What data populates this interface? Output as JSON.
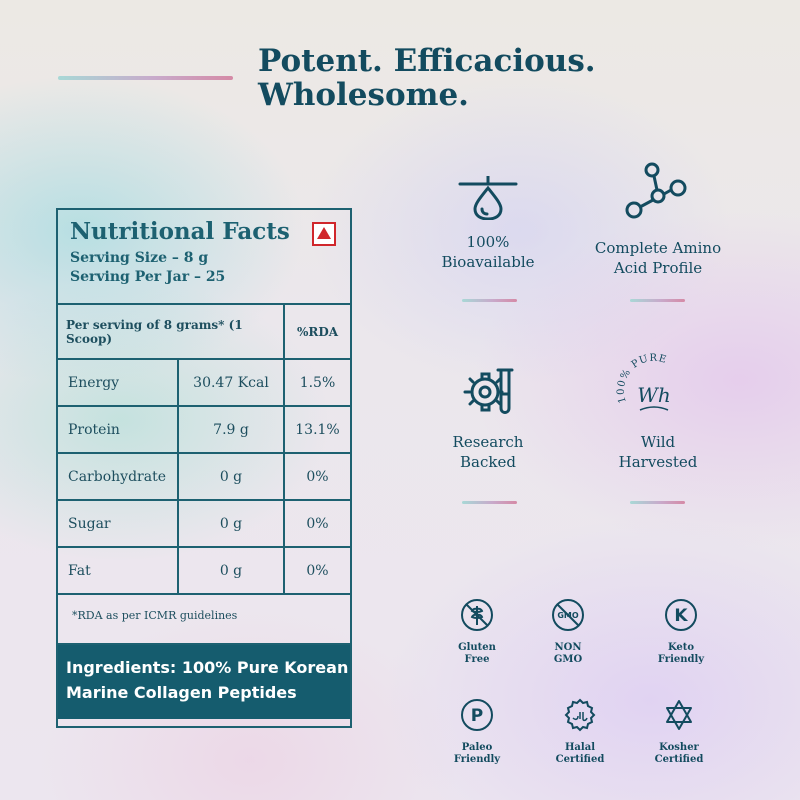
{
  "headline": {
    "line1": "Potent. Efficacious.",
    "line2": "Wholesome."
  },
  "nutrition": {
    "title": "Nutritional Facts",
    "serving_size": "Serving Size – 8 g",
    "serving_per_jar": "Serving Per Jar – 25",
    "header": {
      "per_serving": "Per serving of 8 grams* (1 Scoop)",
      "rda": "%RDA"
    },
    "rows": [
      {
        "name": "Energy",
        "amount": "30.47 Kcal",
        "rda": "1.5%"
      },
      {
        "name": "Protein",
        "amount": "7.9 g",
        "rda": "13.1%"
      },
      {
        "name": "Carbohydrate",
        "amount": "0 g",
        "rda": "0%"
      },
      {
        "name": "Sugar",
        "amount": "0 g",
        "rda": "0%"
      },
      {
        "name": "Fat",
        "amount": "0 g",
        "rda": "0%"
      }
    ],
    "rda_note": "*RDA as per ICMR guidelines",
    "ingredients_line1": "Ingredients: 100% Pure Korean",
    "ingredients_line2": "Marine Collagen Peptides",
    "diet_mark_icon": "non-vegetarian-mark-icon",
    "diet_mark_color": "#d0262b"
  },
  "features": [
    {
      "icon": "water-drop-icon",
      "line1": "100%",
      "line2": "Bioavailable"
    },
    {
      "icon": "molecule-icon",
      "line1": "Complete Amino",
      "line2": "Acid Profile"
    },
    {
      "icon": "gear-flask-icon",
      "line1": "Research",
      "line2": "Backed"
    },
    {
      "icon": "pure-wh-seal-icon",
      "line1": "Wild",
      "line2": "Harvested",
      "seal_text": "100% PURE",
      "seal_mark": "Wh"
    }
  ],
  "certs": [
    {
      "icon": "gluten-free-icon",
      "line1": "Gluten",
      "line2": "Free"
    },
    {
      "icon": "non-gmo-icon",
      "line1": "NON",
      "line2": "GMO",
      "icon_text": "GMO"
    },
    {
      "icon": "keto-k-icon",
      "line1": "Keto",
      "line2": "Friendly",
      "icon_text": "K"
    },
    {
      "icon": "paleo-p-icon",
      "line1": "Paleo",
      "line2": "Friendly",
      "icon_text": "P"
    },
    {
      "icon": "halal-icon",
      "line1": "Halal",
      "line2": "Certified"
    },
    {
      "icon": "star-of-david-icon",
      "line1": "Kosher",
      "line2": "Certified"
    }
  ],
  "colors": {
    "primary": "#134b5f",
    "ingredients_bg": "#155c6e",
    "accent_line_start": "#a8d8d6",
    "accent_line_end": "#d58aa6"
  }
}
